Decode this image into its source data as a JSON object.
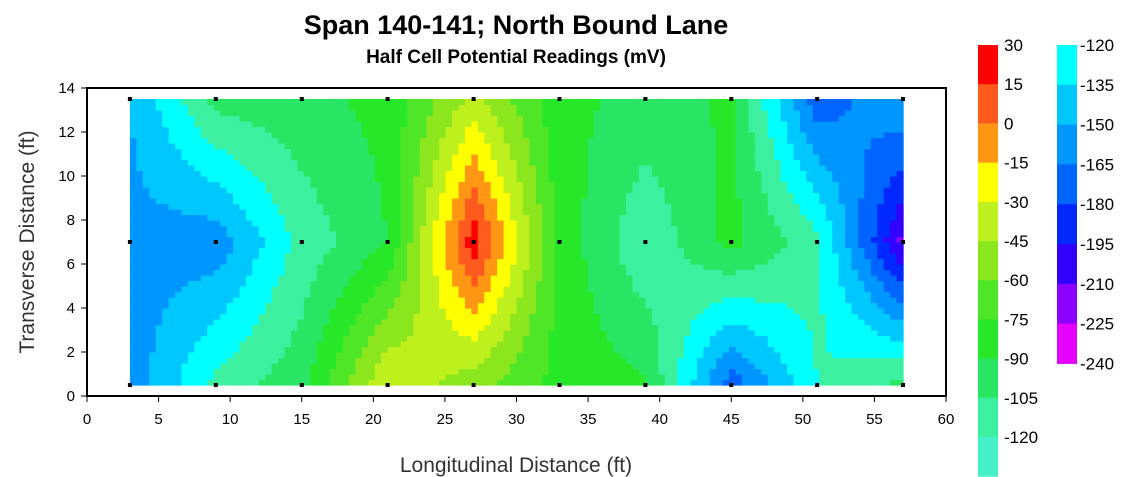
{
  "chart_data": {
    "type": "heatmap",
    "subtype": "filled-contour",
    "title": "Span 140-141; North Bound Lane",
    "subtitle": "Half Cell Potential Readings (mV)",
    "xlabel": "Longitudinal Distance (ft)",
    "ylabel": "Transverse Distance (ft)",
    "xlim": [
      0,
      60
    ],
    "ylim": [
      0,
      14
    ],
    "x_ticks": [
      "0",
      "5",
      "10",
      "15",
      "20",
      "25",
      "30",
      "35",
      "40",
      "45",
      "50",
      "55",
      "60"
    ],
    "y_ticks": [
      "0",
      "2",
      "4",
      "6",
      "8",
      "10",
      "12",
      "14"
    ],
    "grid": false,
    "measurement_x": [
      3,
      9,
      15,
      21,
      27,
      33,
      39,
      45,
      51,
      57
    ],
    "measurement_y": [
      0.5,
      7,
      13.5
    ],
    "values_mV": [
      [
        -160,
        -115,
        -95,
        -30,
        -55,
        -80,
        -88,
        -175,
        -120,
        -100
      ],
      [
        -155,
        -160,
        -115,
        -90,
        25,
        -80,
        -118,
        -85,
        -115,
        -215
      ],
      [
        -150,
        -100,
        -95,
        -85,
        -40,
        -85,
        -95,
        -88,
        -175,
        -150
      ]
    ],
    "legend_left": {
      "placement": "right",
      "labels": [
        "30",
        "15",
        "0",
        "-15",
        "-30",
        "-45",
        "-60",
        "-75",
        "-90",
        "-105",
        "-120"
      ],
      "colors": [
        "#ff0000",
        "#ff5a1e",
        "#ff9614",
        "#ffff00",
        "#bef01e",
        "#8ce61e",
        "#50e628",
        "#28e628",
        "#28e664",
        "#3cf0a0",
        "#46f0c8"
      ]
    },
    "legend_right": {
      "placement": "right",
      "labels": [
        "-120",
        "-135",
        "-150",
        "-165",
        "-180",
        "-195",
        "-210",
        "-225",
        "-240"
      ],
      "colors": [
        "#00ffff",
        "#00c8ff",
        "#0096ff",
        "#0064ff",
        "#0028ff",
        "#3200ff",
        "#8c00ff",
        "#e600ff"
      ]
    }
  }
}
